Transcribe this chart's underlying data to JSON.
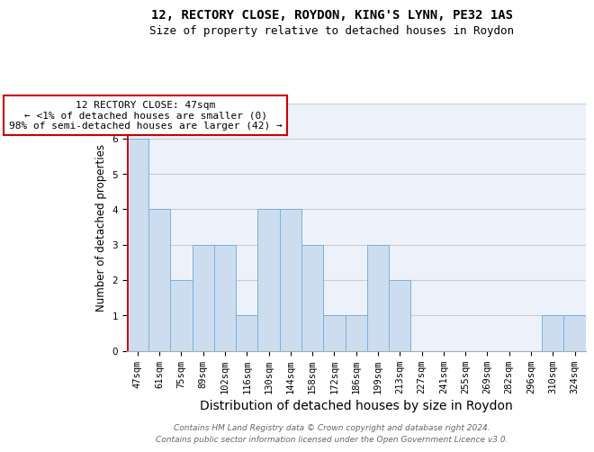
{
  "title1": "12, RECTORY CLOSE, ROYDON, KING'S LYNN, PE32 1AS",
  "title2": "Size of property relative to detached houses in Roydon",
  "xlabel": "Distribution of detached houses by size in Roydon",
  "ylabel": "Number of detached properties",
  "categories": [
    "47sqm",
    "61sqm",
    "75sqm",
    "89sqm",
    "102sqm",
    "116sqm",
    "130sqm",
    "144sqm",
    "158sqm",
    "172sqm",
    "186sqm",
    "199sqm",
    "213sqm",
    "227sqm",
    "241sqm",
    "255sqm",
    "269sqm",
    "282sqm",
    "296sqm",
    "310sqm",
    "324sqm"
  ],
  "values": [
    6,
    4,
    2,
    3,
    3,
    1,
    4,
    4,
    3,
    1,
    1,
    3,
    2,
    0,
    0,
    0,
    0,
    0,
    0,
    1,
    1
  ],
  "highlight_index": 0,
  "bar_color": "#ccddf0",
  "bar_edge_color": "#7ab0d8",
  "highlight_box_color": "#cc0000",
  "annotation_text": "12 RECTORY CLOSE: 47sqm\n← <1% of detached houses are smaller (0)\n98% of semi-detached houses are larger (42) →",
  "ylim": [
    0,
    7
  ],
  "yticks": [
    0,
    1,
    2,
    3,
    4,
    5,
    6,
    7
  ],
  "grid_color": "#cccccc",
  "background_color": "#edf2fa",
  "footer1": "Contains HM Land Registry data © Crown copyright and database right 2024.",
  "footer2": "Contains public sector information licensed under the Open Government Licence v3.0.",
  "title_fontsize": 10,
  "subtitle_fontsize": 9,
  "xlabel_fontsize": 10,
  "ylabel_fontsize": 8.5,
  "tick_fontsize": 7.5,
  "annotation_fontsize": 8,
  "footer_fontsize": 6.5
}
